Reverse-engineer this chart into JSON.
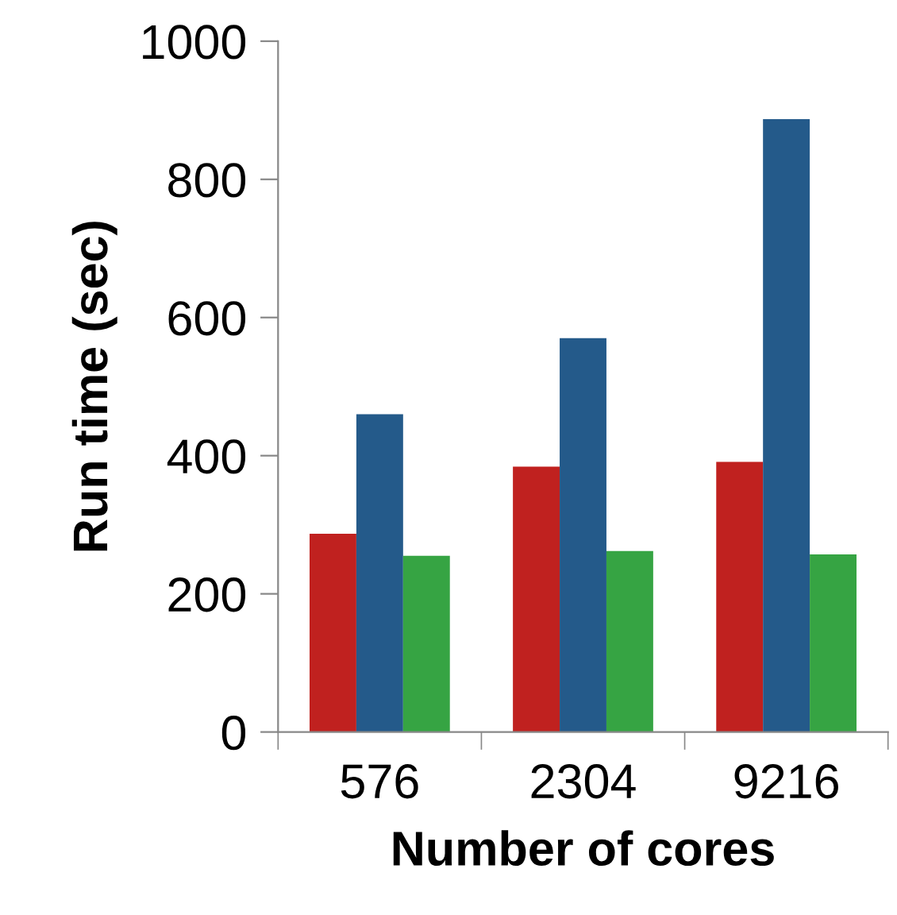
{
  "chart_data": {
    "type": "bar",
    "xlabel": "Number of cores",
    "ylabel": "Run time (sec)",
    "categories": [
      "576",
      "2304",
      "9216"
    ],
    "series": [
      {
        "color": "#c0211f",
        "values": [
          287,
          384,
          391
        ]
      },
      {
        "color": "#245a8a",
        "values": [
          460,
          570,
          887
        ]
      },
      {
        "color": "#36a443",
        "values": [
          255,
          262,
          257
        ]
      }
    ],
    "ylim": [
      0,
      1000
    ],
    "yticks": [
      0,
      200,
      400,
      600,
      800,
      1000
    ],
    "grid": false,
    "legend": false
  }
}
